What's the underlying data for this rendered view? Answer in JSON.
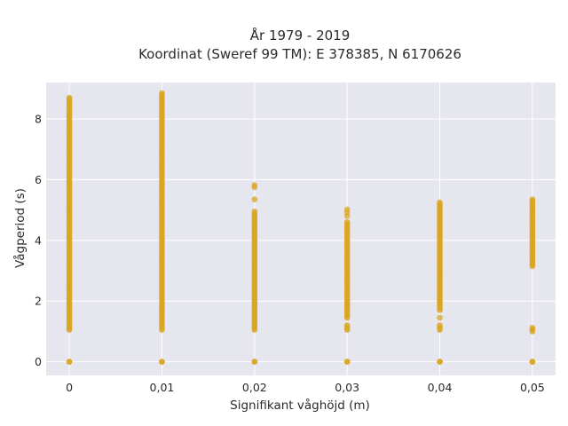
{
  "chart_data": {
    "type": "scatter",
    "title": "År 1979 - 2019",
    "subtitle": "Koordinat (Sweref 99 TM): E 378385, N 6170626",
    "xlabel": "Signifikant våghöjd (m)",
    "ylabel": "Vågperiod (s)",
    "xlim": [
      -0.0025,
      0.0525
    ],
    "ylim": [
      -0.45,
      9.2
    ],
    "grid": true,
    "x_ticks": [
      0,
      0.01,
      0.02,
      0.03,
      0.04,
      0.05
    ],
    "x_tick_labels": [
      "0",
      "0,01",
      "0,02",
      "0,03",
      "0,04",
      "0,05"
    ],
    "y_ticks": [
      0,
      2,
      4,
      6,
      8
    ],
    "y_tick_labels": [
      "0",
      "2",
      "4",
      "6",
      "8"
    ],
    "series": [
      {
        "color": "#daa520",
        "columns": [
          {
            "x": 0,
            "ranges": [
              [
                0,
                0
              ],
              [
                1.05,
                8.65
              ]
            ],
            "points": [
              8.7
            ]
          },
          {
            "x": 0.01,
            "ranges": [
              [
                0,
                0
              ],
              [
                1.05,
                8.85
              ]
            ],
            "points": []
          },
          {
            "x": 0.02,
            "ranges": [
              [
                0,
                0
              ],
              [
                1.05,
                4.95
              ]
            ],
            "points": [
              5.35,
              5.75,
              5.82
            ]
          },
          {
            "x": 0.03,
            "ranges": [
              [
                0,
                0
              ],
              [
                1.05,
                1.2
              ],
              [
                1.45,
                4.6
              ]
            ],
            "points": [
              4.8,
              4.92,
              5.02
            ]
          },
          {
            "x": 0.04,
            "ranges": [
              [
                0,
                0
              ],
              [
                1.05,
                1.2
              ],
              [
                1.7,
                5.2
              ]
            ],
            "points": [
              1.45,
              5.25
            ]
          },
          {
            "x": 0.05,
            "ranges": [
              [
                0,
                0
              ],
              [
                1.0,
                1.12
              ],
              [
                3.15,
                5.35
              ]
            ],
            "points": []
          }
        ]
      }
    ]
  }
}
